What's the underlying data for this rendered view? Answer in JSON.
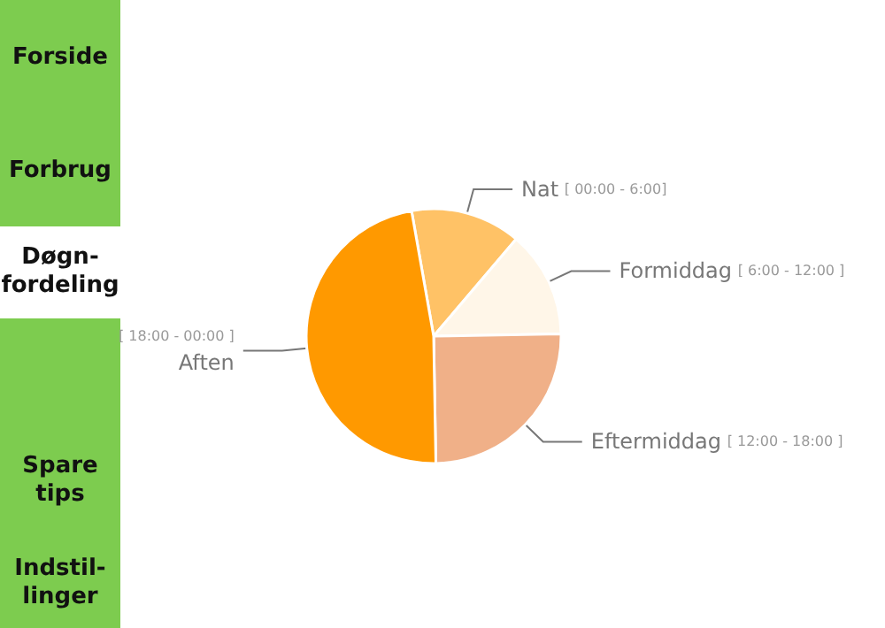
{
  "chart_data": [
    {
      "type": "pie",
      "categories": [
        "Nat [ 00:00 - 6:00]",
        "Formiddag [ 6:00 - 12:00 ]",
        "Eftermiddag [ 12:00 - 18:00 ]",
        "[ 18:00 - 00:00 ] Aften"
      ],
      "values": [
        14,
        13.5,
        25,
        47.5
      ],
      "colors": [
        "#ffc266",
        "#fff6e8",
        "#f0b088",
        "#ff9900"
      ],
      "legend": false
    },
    {
      "type": "other",
      "annotations": [
        "Forside",
        "Forbrug",
        "Døgn-\nfordeling",
        "Spare\ntips",
        "Indstil-\nlinger"
      ]
    }
  ]
}
